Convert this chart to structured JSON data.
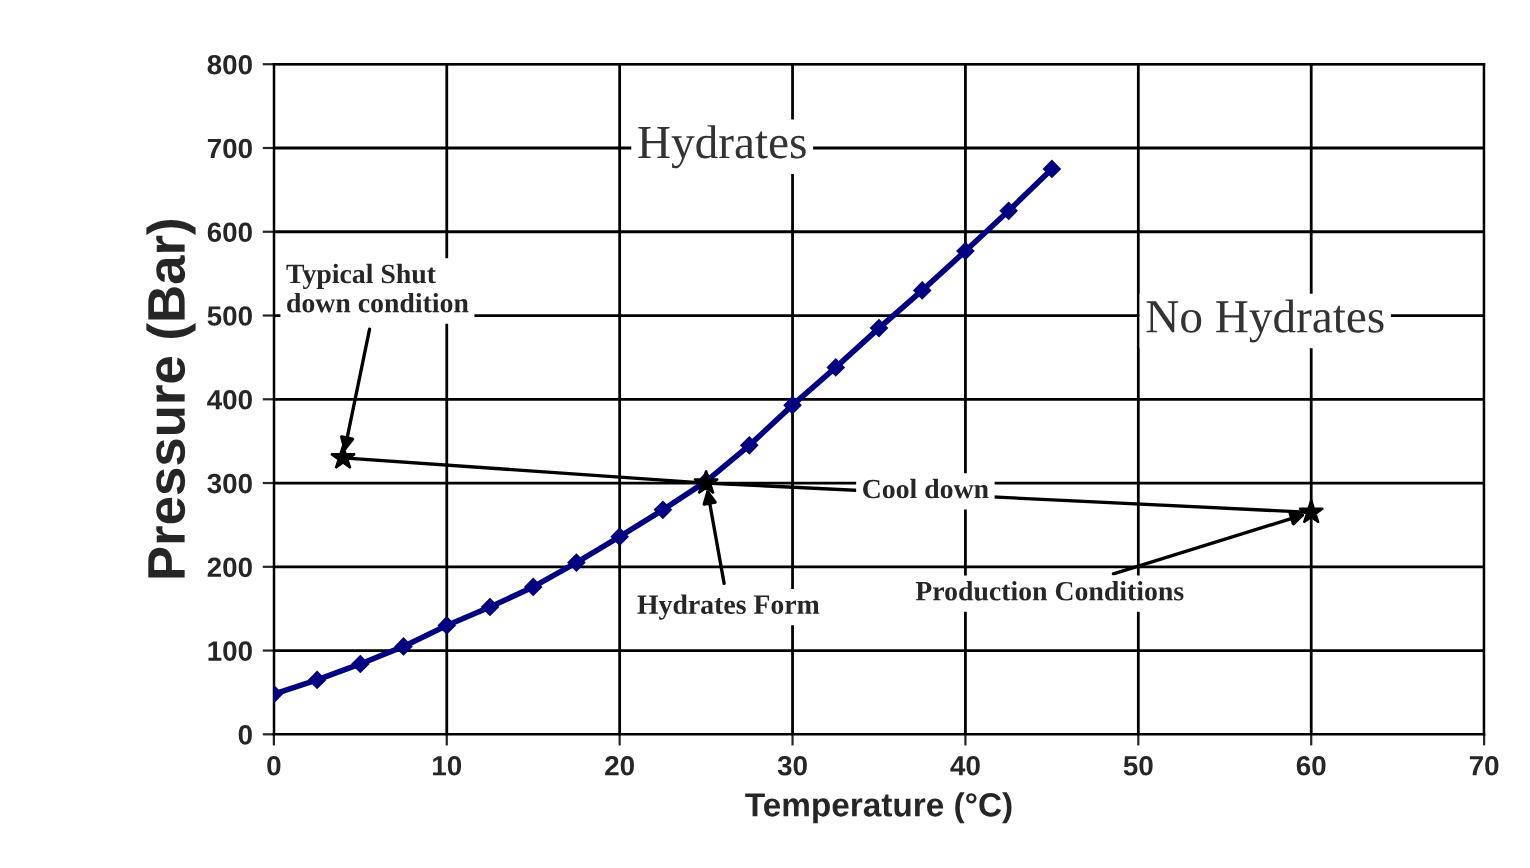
{
  "chart_data": {
    "type": "line",
    "xlabel": "Temperature (°C)",
    "ylabel": "Pressure (Bar)",
    "xlim": [
      0,
      70
    ],
    "xticks": [
      0,
      10,
      20,
      30,
      40,
      50,
      60,
      70
    ],
    "ylim": [
      0,
      800
    ],
    "yticks": [
      0,
      100,
      200,
      300,
      400,
      500,
      600,
      700,
      800
    ],
    "grid": true,
    "legend": false,
    "series": [
      {
        "color": "#000080",
        "marker": "diamond",
        "line_style": "solid",
        "x": [
          0,
          2.5,
          5,
          7.5,
          10,
          12.5,
          15,
          17.5,
          20,
          22.5,
          25,
          27.5,
          30,
          32.5,
          35,
          37.5,
          40,
          42.5,
          45
        ],
        "values": [
          48,
          65,
          84,
          105,
          130,
          152,
          176,
          205,
          236,
          268,
          302,
          345,
          393,
          438,
          485,
          530,
          577,
          625,
          675
        ]
      },
      {
        "color": "#000000",
        "marker": "star",
        "line_style": "solid",
        "x": [
          4,
          25,
          60
        ],
        "values": [
          330,
          300,
          265
        ]
      }
    ],
    "annotations": [
      "Hydrates",
      "No Hydrates",
      {
        "text": "Typical Shut\ndown condition",
        "x": 4,
        "y": 330
      },
      {
        "text": "Hydrates Form",
        "x": 25,
        "y": 300
      },
      {
        "text": "Production Conditions",
        "x": 60,
        "y": 265
      },
      {
        "text": "Cool down",
        "x": 34,
        "y": 290
      }
    ]
  }
}
